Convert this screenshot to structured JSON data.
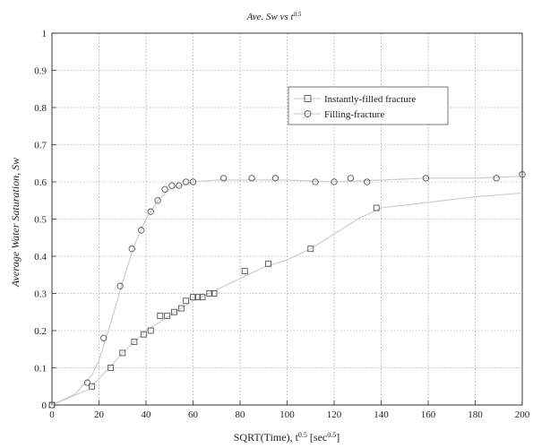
{
  "chart_data": {
    "type": "line",
    "title_main": "Ave. Sw vs t",
    "title_sup": "0.5",
    "xlabel_main": "SQRT(Time), t",
    "xlabel_sup1": "0.5",
    "xlabel_mid": " [sec",
    "xlabel_sup2": "0.5",
    "xlabel_end": "]",
    "ylabel": "Average Water Saturation, Sw",
    "xlim": [
      0,
      200
    ],
    "ylim": [
      0,
      1
    ],
    "xticks": [
      0,
      20,
      40,
      60,
      80,
      100,
      120,
      140,
      160,
      180,
      200
    ],
    "yticks": [
      0,
      0.1,
      0.2,
      0.3,
      0.4,
      0.5,
      0.6,
      0.7,
      0.8,
      0.9,
      1
    ],
    "ytick_labels": [
      "0",
      "0.1",
      "0.2",
      "0.3",
      "0.4",
      "0.5",
      "0.6",
      "0.7",
      "0.8",
      "0.9",
      "1"
    ],
    "grid": true,
    "legend_position": "top-right",
    "series": [
      {
        "name": "Instantly-filled fracture",
        "marker": "square",
        "points": [
          [
            0,
            0
          ],
          [
            17,
            0.05
          ],
          [
            25,
            0.1
          ],
          [
            30,
            0.14
          ],
          [
            35,
            0.17
          ],
          [
            39,
            0.19
          ],
          [
            42,
            0.2
          ],
          [
            46,
            0.24
          ],
          [
            49,
            0.24
          ],
          [
            52,
            0.25
          ],
          [
            55,
            0.26
          ],
          [
            57,
            0.28
          ],
          [
            60,
            0.29
          ],
          [
            62,
            0.29
          ],
          [
            64,
            0.29
          ],
          [
            67,
            0.3
          ],
          [
            69,
            0.3
          ],
          [
            82,
            0.36
          ],
          [
            92,
            0.38
          ],
          [
            110,
            0.42
          ],
          [
            138,
            0.53
          ]
        ],
        "curve": [
          [
            0,
            0
          ],
          [
            15,
            0.04
          ],
          [
            20,
            0.07
          ],
          [
            30,
            0.14
          ],
          [
            40,
            0.2
          ],
          [
            50,
            0.24
          ],
          [
            60,
            0.28
          ],
          [
            70,
            0.31
          ],
          [
            80,
            0.34
          ],
          [
            90,
            0.37
          ],
          [
            100,
            0.39
          ],
          [
            110,
            0.42
          ],
          [
            120,
            0.46
          ],
          [
            130,
            0.5
          ],
          [
            140,
            0.53
          ],
          [
            160,
            0.545
          ],
          [
            180,
            0.56
          ],
          [
            200,
            0.57
          ]
        ]
      },
      {
        "name": "Filling-fracture",
        "marker": "circle",
        "points": [
          [
            0,
            0
          ],
          [
            15,
            0.06
          ],
          [
            22,
            0.18
          ],
          [
            29,
            0.32
          ],
          [
            34,
            0.42
          ],
          [
            38,
            0.47
          ],
          [
            42,
            0.52
          ],
          [
            45,
            0.55
          ],
          [
            48,
            0.58
          ],
          [
            51,
            0.59
          ],
          [
            54,
            0.59
          ],
          [
            57,
            0.6
          ],
          [
            60,
            0.6
          ],
          [
            73,
            0.61
          ],
          [
            85,
            0.61
          ],
          [
            95,
            0.61
          ],
          [
            112,
            0.6
          ],
          [
            120,
            0.6
          ],
          [
            127,
            0.61
          ],
          [
            134,
            0.6
          ],
          [
            159,
            0.61
          ],
          [
            189,
            0.61
          ],
          [
            200,
            0.62
          ]
        ],
        "curve": [
          [
            0,
            0
          ],
          [
            10,
            0.03
          ],
          [
            17,
            0.08
          ],
          [
            20,
            0.12
          ],
          [
            25,
            0.22
          ],
          [
            30,
            0.33
          ],
          [
            35,
            0.43
          ],
          [
            40,
            0.5
          ],
          [
            45,
            0.55
          ],
          [
            50,
            0.58
          ],
          [
            55,
            0.59
          ],
          [
            60,
            0.6
          ],
          [
            70,
            0.605
          ],
          [
            80,
            0.605
          ],
          [
            100,
            0.605
          ],
          [
            120,
            0.6
          ],
          [
            140,
            0.605
          ],
          [
            160,
            0.61
          ],
          [
            180,
            0.61
          ],
          [
            200,
            0.615
          ]
        ]
      }
    ]
  }
}
